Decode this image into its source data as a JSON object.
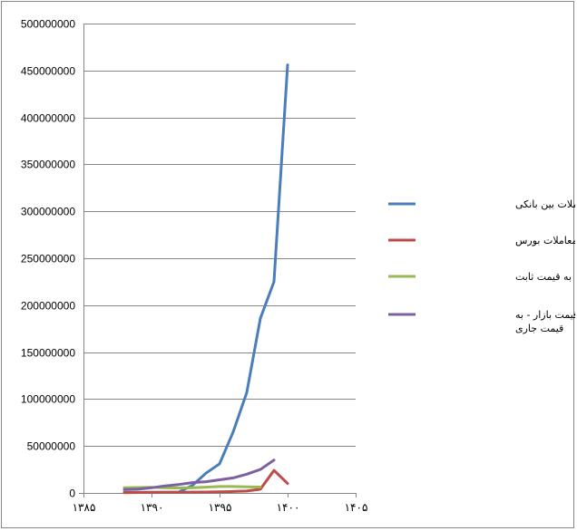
{
  "chart_data": {
    "type": "line",
    "title": "",
    "xlabel": "",
    "ylabel": "",
    "xlim": [
      1385,
      1405
    ],
    "ylim": [
      0,
      500000000
    ],
    "x_ticks": [
      1385,
      1390,
      1395,
      1400,
      1405
    ],
    "x_tick_labels": [
      "۱۳۸۵",
      "۱۳۹۰",
      "۱۳۹۵",
      "۱۴۰۰",
      "۱۴۰۵"
    ],
    "y_ticks": [
      0,
      50000000,
      100000000,
      150000000,
      200000000,
      250000000,
      300000000,
      350000000,
      400000000,
      450000000,
      500000000
    ],
    "y_tick_labels": [
      "0",
      "50000000",
      "100000000",
      "150000000",
      "200000000",
      "250000000",
      "300000000",
      "350000000",
      "400000000",
      "450000000",
      "500000000"
    ],
    "grid": true,
    "legend_position": "right",
    "series": [
      {
        "name": "حجم معاملات بین بانکی",
        "color": "#4A7EBB",
        "points": [
          [
            1388,
            500000
          ],
          [
            1389,
            600000
          ],
          [
            1390,
            700000
          ],
          [
            1391,
            800000
          ],
          [
            1392,
            900000
          ],
          [
            1393,
            8000000
          ],
          [
            1394,
            21000000
          ],
          [
            1395,
            31000000
          ],
          [
            1396,
            65000000
          ],
          [
            1397,
            107000000
          ],
          [
            1398,
            186000000
          ],
          [
            1399,
            225000000
          ],
          [
            1400,
            456000000
          ]
        ]
      },
      {
        "name": "ارزش معاملات بورس",
        "color": "#BE4B48",
        "points": [
          [
            1388,
            300000
          ],
          [
            1389,
            500000
          ],
          [
            1390,
            600000
          ],
          [
            1391,
            700000
          ],
          [
            1392,
            800000
          ],
          [
            1393,
            900000
          ],
          [
            1394,
            1000000
          ],
          [
            1395,
            1200000
          ],
          [
            1396,
            1500000
          ],
          [
            1397,
            2000000
          ],
          [
            1398,
            4000000
          ],
          [
            1399,
            24000000
          ],
          [
            1400,
            10000000
          ]
        ]
      },
      {
        "name": "تولید ناخالص ملی به قیمت ثابت",
        "color": "#98B954",
        "points": [
          [
            1388,
            5500000
          ],
          [
            1389,
            5800000
          ],
          [
            1390,
            6000000
          ],
          [
            1391,
            5400000
          ],
          [
            1392,
            5300000
          ],
          [
            1393,
            5600000
          ],
          [
            1394,
            6200000
          ],
          [
            1395,
            6900000
          ],
          [
            1396,
            6900000
          ],
          [
            1397,
            6500000
          ],
          [
            1398,
            6300000
          ]
        ]
      },
      {
        "name": "تولید ناخالص ملی به قیمت بازار - به قیمت جاری",
        "color": "#7D60A0",
        "points": [
          [
            1388,
            3500000
          ],
          [
            1389,
            4000000
          ],
          [
            1390,
            5500000
          ],
          [
            1391,
            7500000
          ],
          [
            1392,
            9000000
          ],
          [
            1393,
            11000000
          ],
          [
            1394,
            12000000
          ],
          [
            1395,
            14000000
          ],
          [
            1396,
            16000000
          ],
          [
            1397,
            20000000
          ],
          [
            1398,
            25000000
          ],
          [
            1399,
            35000000
          ]
        ]
      }
    ],
    "legend_lines": [
      [
        "حجم معاملات بین بانکی"
      ],
      [
        "ارزش معاملات بورس"
      ],
      [
        "تولید ناخالص ملی به قیمت ثابت"
      ],
      [
        "تولید ناخالص ملی به قیمت بازار - به",
        "قیمت جاری"
      ]
    ]
  }
}
